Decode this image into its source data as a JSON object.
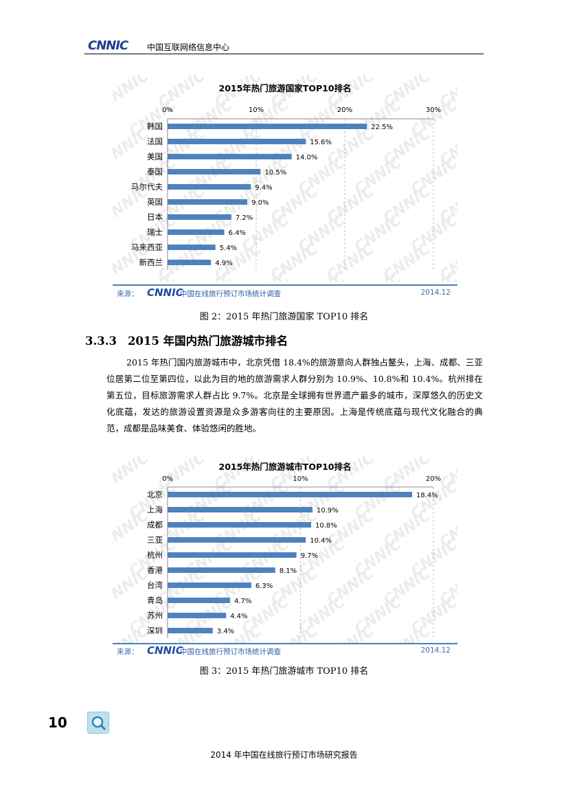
{
  "header": {
    "logo": "CNNIC",
    "title": "中国互联网络信息中心"
  },
  "figure2": {
    "chart_data": {
      "type": "bar",
      "title": "2015年热门旅游国家TOP10排名",
      "categories": [
        "韩国",
        "法国",
        "美国",
        "泰国",
        "马尔代夫",
        "英国",
        "日本",
        "瑞士",
        "马来西亚",
        "新西兰"
      ],
      "values": [
        22.5,
        15.6,
        14.0,
        10.5,
        9.4,
        9.0,
        7.2,
        6.4,
        5.4,
        4.9
      ],
      "value_labels": [
        "22.5%",
        "15.6%",
        "14.0%",
        "10.5%",
        "9.4%",
        "9.0%",
        "7.2%",
        "6.4%",
        "5.4%",
        "4.9%"
      ],
      "xlim": [
        0,
        30
      ],
      "ticks": [
        "0%",
        "10%",
        "20%",
        "30%"
      ],
      "orientation": "horizontal",
      "axis_position": "top",
      "grid": true,
      "bar_color": "#4f81bd"
    },
    "source": {
      "label": "来源：",
      "logo": "CNNIC",
      "name": "中国在线旅行预订市场统计调查",
      "date": "2014.12"
    },
    "caption": "图 2：2015 年热门旅游国家 TOP10 排名"
  },
  "section": {
    "number": "3.3.3",
    "title": "2015 年国内热门旅游城市排名",
    "paragraph": "2015 年热门国内旅游城市中，北京凭借 18.4%的旅游意向人群独占鳌头，上海、成都、三亚位居第二位至第四位，以此为目的地的旅游需求人群分别为 10.9%、10.8%和 10.4%。杭州排在第五位，目标旅游需求人群占比 9.7%。北京是全球拥有世界遗产最多的城市，深厚悠久的历史文化底蕴，发达的旅游设置资源是众多游客向往的主要原因。上海是传统底蕴与现代文化融合的典范，成都是品味美食、体验悠闲的胜地。"
  },
  "figure3": {
    "chart_data": {
      "type": "bar",
      "title": "2015年热门旅游城市TOP10排名",
      "categories": [
        "北京",
        "上海",
        "成都",
        "三亚",
        "杭州",
        "香港",
        "台湾",
        "青岛",
        "苏州",
        "深圳"
      ],
      "values": [
        18.4,
        10.9,
        10.8,
        10.4,
        9.7,
        8.1,
        6.3,
        4.7,
        4.4,
        3.4
      ],
      "value_labels": [
        "18.4%",
        "10.9%",
        "10.8%",
        "10.4%",
        "9.7%",
        "8.1%",
        "6.3%",
        "4.7%",
        "4.4%",
        "3.4%"
      ],
      "xlim": [
        0,
        20
      ],
      "ticks": [
        "0%",
        "10%",
        "20%"
      ],
      "orientation": "horizontal",
      "axis_position": "top",
      "grid": true,
      "bar_color": "#4f81bd"
    },
    "source": {
      "label": "来源：",
      "logo": "CNNIC",
      "name": "中国在线旅行预订市场统计调查",
      "date": "2014.12"
    },
    "caption": "图 3：2015 年热门旅游城市 TOP10 排名"
  },
  "footer": {
    "page_number": "10",
    "title": "2014 年中国在线旅行预订市场研究报告"
  }
}
